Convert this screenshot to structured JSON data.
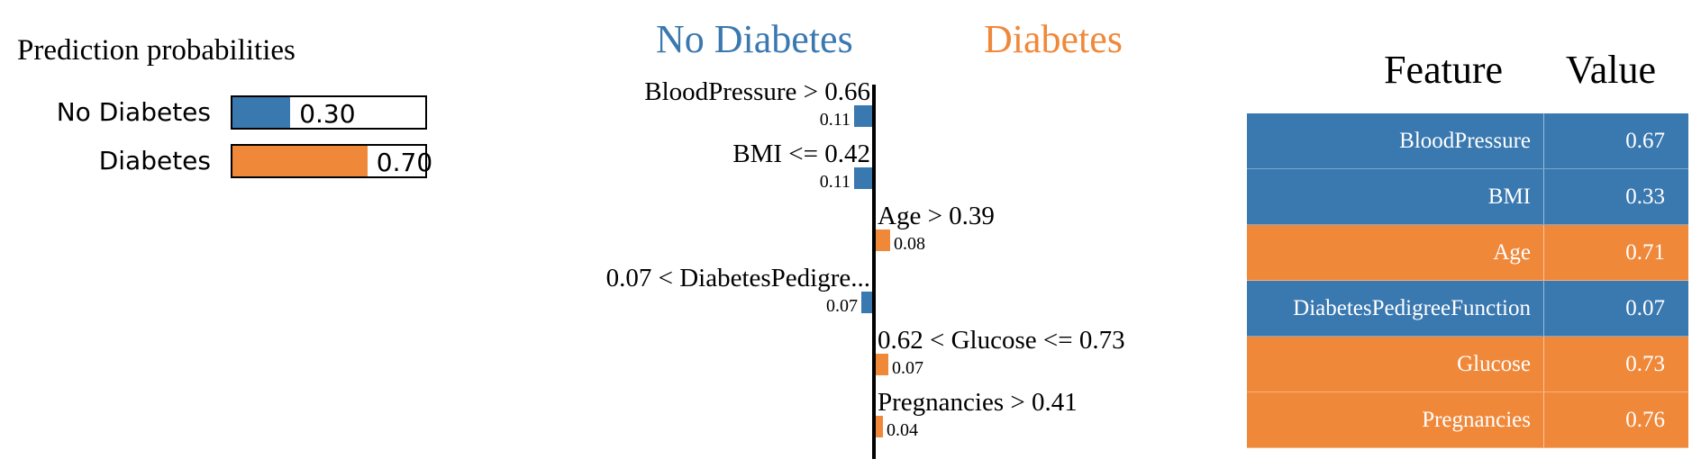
{
  "colors": {
    "no_diabetes": "#3a78b0",
    "diabetes": "#f0883a"
  },
  "proba": {
    "title": "Prediction probabilities",
    "rows": [
      {
        "label": "No Diabetes",
        "value": 0.3,
        "value_text": "0.30",
        "color_key": "no_diabetes"
      },
      {
        "label": "Diabetes",
        "value": 0.7,
        "value_text": "0.70",
        "color_key": "diabetes"
      }
    ]
  },
  "chart_data": {
    "type": "bar",
    "orientation": "horizontal-diverging",
    "class_labels": {
      "negative": "No Diabetes",
      "positive": "Diabetes"
    },
    "categories": [
      "BloodPressure > 0.66",
      "BMI <= 0.42",
      "Age > 0.39",
      "0.07 < DiabetesPedigre...",
      "0.62 < Glucose <= 0.73",
      "Pregnancies > 0.41"
    ],
    "weights": [
      -0.11,
      -0.11,
      0.08,
      -0.07,
      0.07,
      0.04
    ],
    "value_labels": [
      "0.11",
      "0.11",
      "0.08",
      "0.07",
      "0.07",
      "0.04"
    ],
    "xlim": [
      -0.12,
      0.12
    ]
  },
  "feature_table": {
    "headers": {
      "feature": "Feature",
      "value": "Value"
    },
    "rows": [
      {
        "feature": "BloodPressure",
        "value": "0.67",
        "color_key": "no_diabetes"
      },
      {
        "feature": "BMI",
        "value": "0.33",
        "color_key": "no_diabetes"
      },
      {
        "feature": "Age",
        "value": "0.71",
        "color_key": "diabetes"
      },
      {
        "feature": "DiabetesPedigreeFunction",
        "value": "0.07",
        "color_key": "no_diabetes"
      },
      {
        "feature": "Glucose",
        "value": "0.73",
        "color_key": "diabetes"
      },
      {
        "feature": "Pregnancies",
        "value": "0.76",
        "color_key": "diabetes"
      }
    ]
  }
}
